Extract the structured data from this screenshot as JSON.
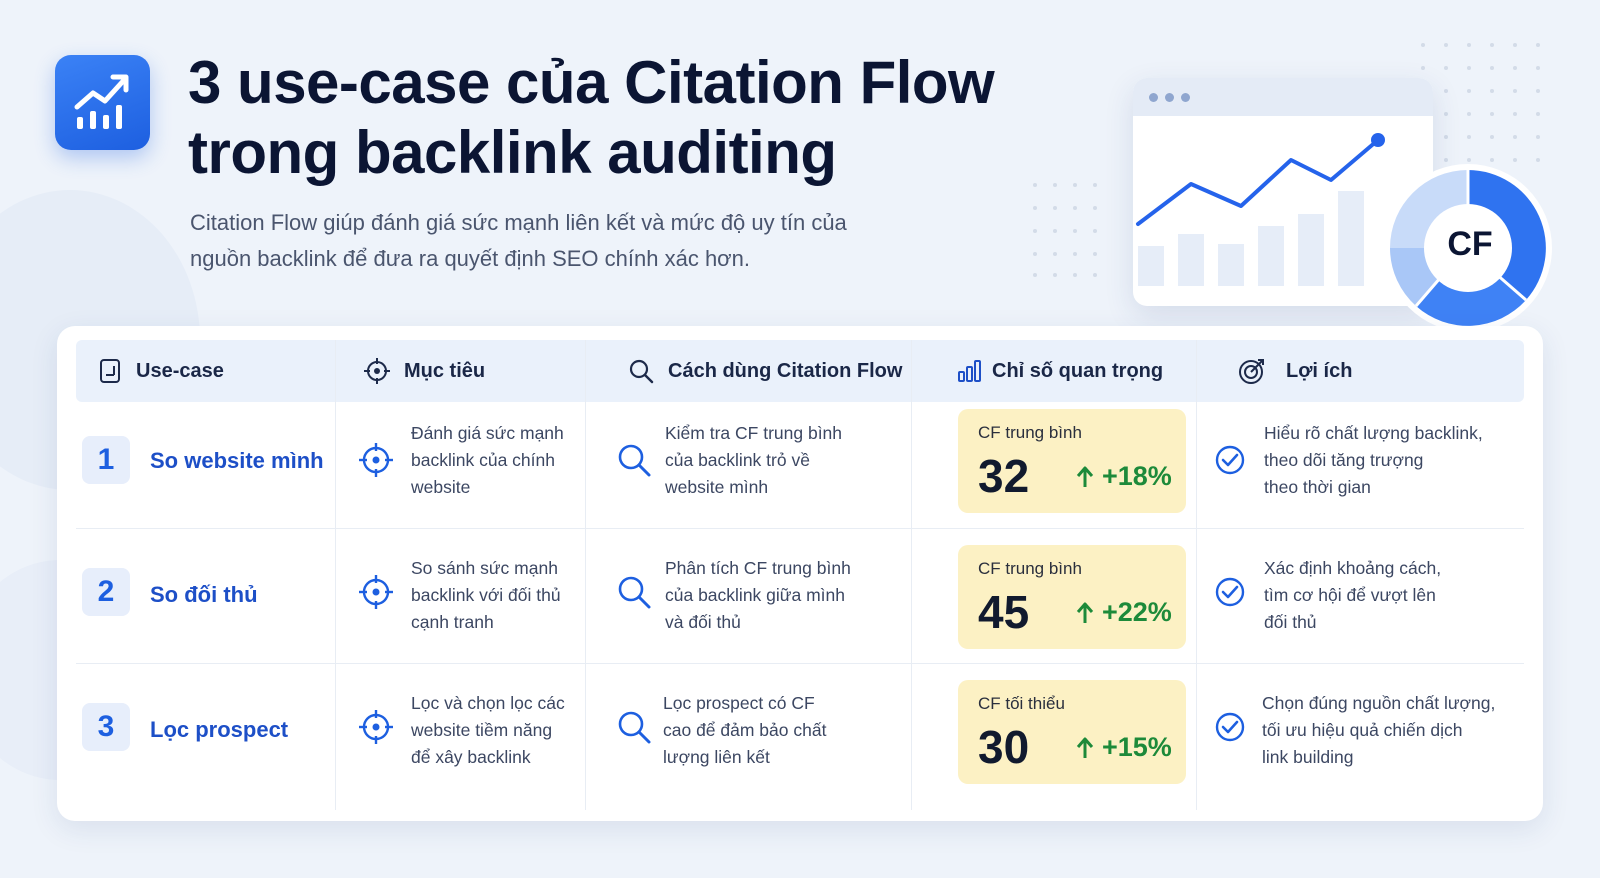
{
  "header": {
    "title": "3 use-case của Citation Flow\ntrong backlink auditing",
    "subtitle": "Citation Flow giúp đánh giá sức mạnh liên kết và mức độ uy tín của\nnguồn backlink để đưa ra quyết định SEO chính xác hơn.",
    "logo_icon": "chart-trend-up-icon"
  },
  "hero": {
    "badge": "CF",
    "accent_color": "#2f73f0"
  },
  "table": {
    "headers": [
      {
        "label": "Use-case",
        "icon": "document-icon"
      },
      {
        "label": "Mục tiêu",
        "icon": "target-icon"
      },
      {
        "label": "Cách dùng Citation Flow",
        "icon": "search-icon"
      },
      {
        "label": "Chỉ số quan trọng",
        "icon": "bar-chart-icon"
      },
      {
        "label": "Lợi ích",
        "icon": "goal-check-icon"
      }
    ],
    "rows": [
      {
        "number": "1",
        "usecase": "So website mình",
        "goal": "Đánh giá sức mạnh\nbacklink của chính\nwebsite",
        "usage": "Kiểm tra CF trung bình\ncủa backlink trỏ về\nwebsite mình",
        "metric_label": "CF trung bình",
        "metric_value": "32",
        "metric_delta": "+18%",
        "benefit": "Hiểu rõ chất lượng backlink,\ntheo dõi tăng trượng\ntheo thời gian"
      },
      {
        "number": "2",
        "usecase": "So đối thủ",
        "goal": "So sánh sức mạnh\nbacklink với đối thủ\ncạnh tranh",
        "usage": "Phân tích CF trung bình\ncủa backlink giữa mình\nvà đối thủ",
        "metric_label": "CF trung bình",
        "metric_value": "45",
        "metric_delta": "+22%",
        "benefit": "Xác định khoảng cách,\ntìm cơ hội để vượt lên\nđối thủ"
      },
      {
        "number": "3",
        "usecase": "Lọc prospect",
        "goal": "Lọc và chọn lọc các\nwebsite tiềm năng\nđể xây backlink",
        "usage": "Lọc prospect có CF\ncao để đảm bảo chất\nlượng liên kết",
        "metric_label": "CF tối thiểu",
        "metric_value": "30",
        "metric_delta": "+15%",
        "benefit": "Chọn đúng nguồn chất lượng,\ntối ưu hiệu quả chiến dịch\nlink building"
      }
    ]
  },
  "colors": {
    "primary": "#1d5fe0",
    "metric_bg": "#fcf1c4",
    "positive": "#1d8a3a"
  }
}
